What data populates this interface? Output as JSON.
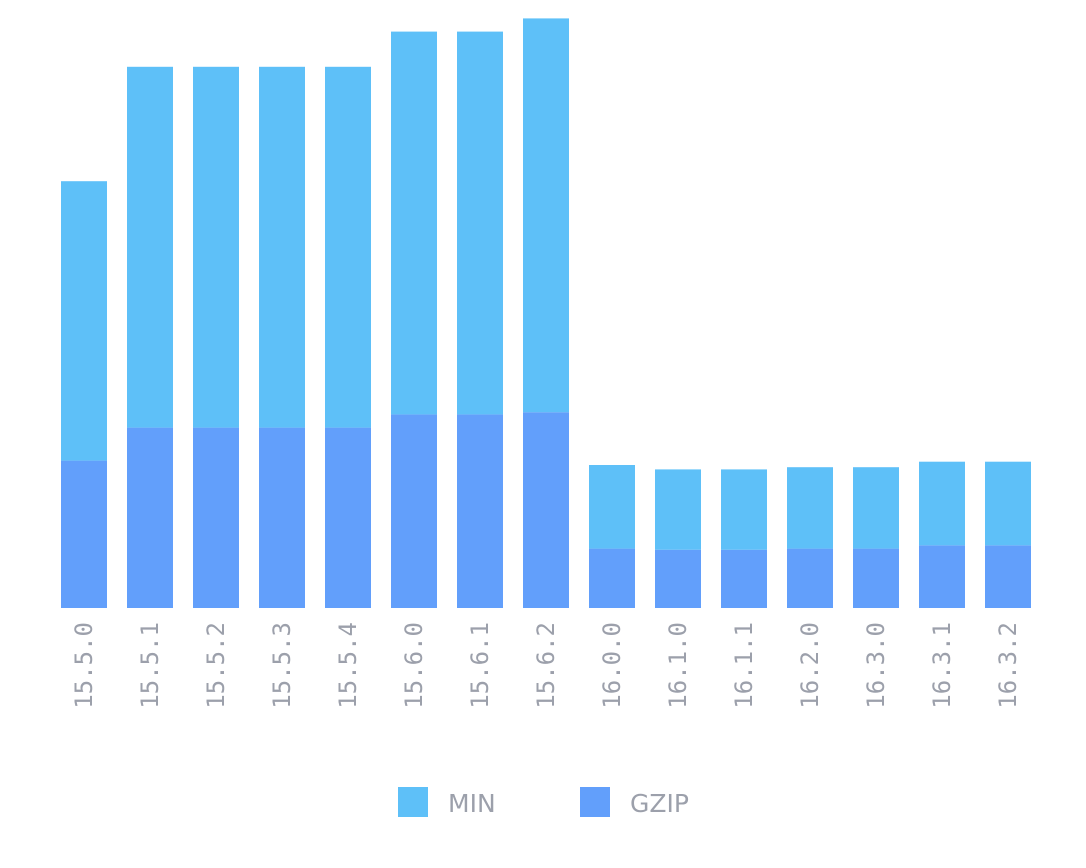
{
  "chart_data": {
    "type": "bar",
    "stacked": true,
    "categories": [
      "15.5.0",
      "15.5.1",
      "15.5.2",
      "15.5.3",
      "15.5.4",
      "15.6.0",
      "15.6.1",
      "15.6.2",
      "16.0.0",
      "16.1.0",
      "16.1.1",
      "16.2.0",
      "16.3.0",
      "16.3.1",
      "16.3.2"
    ],
    "series": [
      {
        "name": "GZIP",
        "color": "#629ffb",
        "values": [
          13.4,
          16.4,
          16.4,
          16.4,
          16.4,
          17.6,
          17.6,
          17.8,
          5.4,
          5.3,
          5.3,
          5.4,
          5.4,
          5.7,
          5.7
        ]
      },
      {
        "name": "MIN",
        "color": "#5ec0f8",
        "values": [
          25.4,
          32.8,
          32.8,
          32.8,
          32.8,
          34.8,
          34.8,
          35.8,
          7.6,
          7.3,
          7.3,
          7.4,
          7.4,
          7.6,
          7.6
        ]
      }
    ],
    "ylim": [
      0,
      54
    ],
    "grid": false,
    "legend_position": "bottom-center",
    "title": "",
    "xlabel": "",
    "ylabel": ""
  },
  "legend": {
    "items": [
      {
        "label": "MIN",
        "color": "#5ec0f8"
      },
      {
        "label": "GZIP",
        "color": "#629ffb"
      }
    ]
  }
}
